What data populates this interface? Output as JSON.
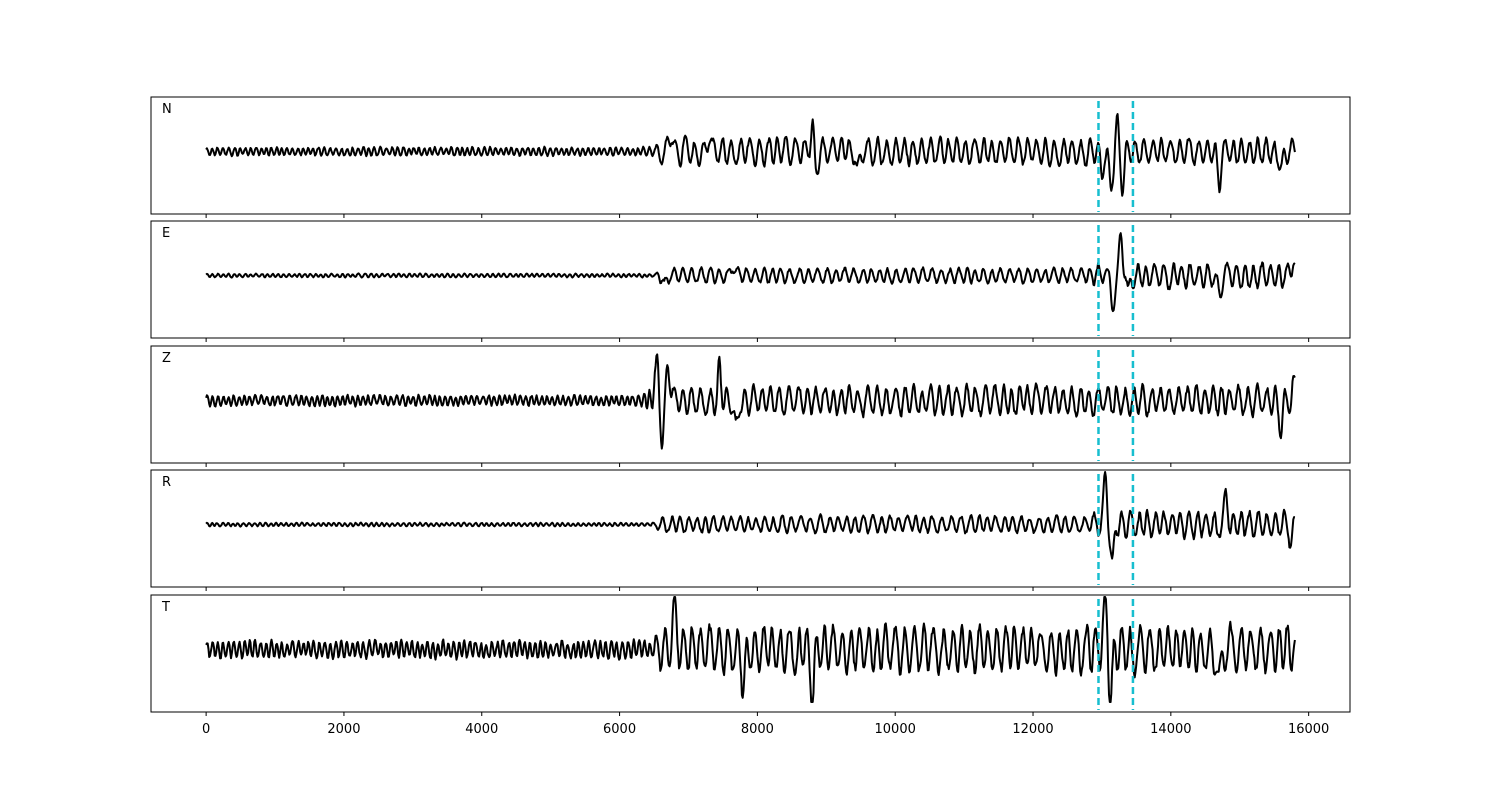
{
  "chart_data": {
    "type": "line",
    "title": "",
    "xlabel": "",
    "ylabel": "",
    "xlim": [
      -800,
      16600
    ],
    "x_ticks": [
      0,
      2000,
      4000,
      6000,
      8000,
      10000,
      12000,
      14000,
      16000
    ],
    "x_tick_labels": [
      "0",
      "2000",
      "4000",
      "6000",
      "8000",
      "10000",
      "12000",
      "14000",
      "16000"
    ],
    "grid": false,
    "vertical_markers": {
      "color": "#17becf",
      "style": "dashed",
      "x": [
        12950,
        13450
      ]
    },
    "trace_color": "#000000",
    "trace_x_range": [
      0,
      15800
    ],
    "panels": [
      {
        "channel": "N",
        "envelope": [
          [
            0,
            0.12
          ],
          [
            6500,
            0.12
          ],
          [
            6600,
            0.32
          ],
          [
            15800,
            0.32
          ]
        ],
        "bursts": [
          {
            "x": 6750,
            "y": 0.35
          },
          {
            "x": 7300,
            "y": 0.33
          },
          {
            "x": 8800,
            "y": 0.5
          },
          {
            "x": 8850,
            "y": -0.45
          },
          {
            "x": 9450,
            "y": -0.42
          },
          {
            "x": 13000,
            "y": -0.35
          },
          {
            "x": 13130,
            "y": -0.75
          },
          {
            "x": 13220,
            "y": 0.5
          },
          {
            "x": 13300,
            "y": -0.6
          },
          {
            "x": 14700,
            "y": -0.55
          },
          {
            "x": 15600,
            "y": -0.45
          }
        ]
      },
      {
        "channel": "E",
        "envelope": [
          [
            0,
            0.05
          ],
          [
            6500,
            0.05
          ],
          [
            6600,
            0.18
          ],
          [
            12800,
            0.18
          ],
          [
            12950,
            0.3
          ],
          [
            15800,
            0.3
          ]
        ],
        "bursts": [
          {
            "x": 6650,
            "y": -0.22
          },
          {
            "x": 7650,
            "y": 0.18
          },
          {
            "x": 13050,
            "y": 0.2
          },
          {
            "x": 13150,
            "y": -0.7
          },
          {
            "x": 13280,
            "y": 0.72
          },
          {
            "x": 13380,
            "y": -0.4
          },
          {
            "x": 14700,
            "y": -0.4
          },
          {
            "x": 15790,
            "y": 0.45
          }
        ]
      },
      {
        "channel": "Z",
        "envelope": [
          [
            0,
            0.15
          ],
          [
            6300,
            0.15
          ],
          [
            6450,
            0.35
          ],
          [
            15800,
            0.35
          ]
        ],
        "bursts": [
          {
            "x": 6550,
            "y": 0.78
          },
          {
            "x": 6620,
            "y": -0.9
          },
          {
            "x": 6700,
            "y": 0.85
          },
          {
            "x": 7450,
            "y": 0.6
          },
          {
            "x": 7700,
            "y": -0.6
          },
          {
            "x": 15600,
            "y": -0.45
          },
          {
            "x": 15790,
            "y": 0.3
          }
        ]
      },
      {
        "channel": "R",
        "envelope": [
          [
            0,
            0.05
          ],
          [
            6500,
            0.05
          ],
          [
            6600,
            0.2
          ],
          [
            12800,
            0.2
          ],
          [
            12950,
            0.32
          ],
          [
            15800,
            0.32
          ]
        ],
        "bursts": [
          {
            "x": 13050,
            "y": 0.85
          },
          {
            "x": 13150,
            "y": -0.8
          },
          {
            "x": 14800,
            "y": 0.5
          },
          {
            "x": 15750,
            "y": -0.35
          }
        ]
      },
      {
        "channel": "T",
        "envelope": [
          [
            0,
            0.25
          ],
          [
            6500,
            0.25
          ],
          [
            6600,
            0.55
          ],
          [
            15800,
            0.55
          ]
        ],
        "bursts": [
          {
            "x": 6800,
            "y": 0.75
          },
          {
            "x": 7800,
            "y": -0.75
          },
          {
            "x": 8800,
            "y": -0.85
          },
          {
            "x": 13050,
            "y": 0.75
          },
          {
            "x": 13130,
            "y": -0.9
          },
          {
            "x": 14700,
            "y": -0.8
          }
        ]
      }
    ]
  }
}
